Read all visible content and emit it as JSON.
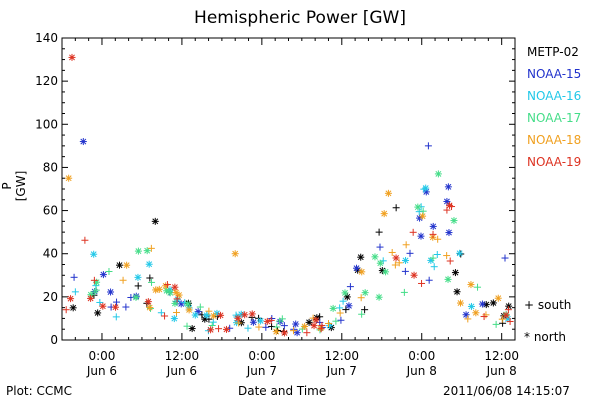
{
  "chart_data": {
    "type": "scatter",
    "title": "Hemispheric Power [GW]",
    "ylabel": "P [GW]",
    "xlabel": "Date and Time",
    "ylim": [
      0,
      140
    ],
    "yticks": [
      0,
      20,
      40,
      60,
      80,
      100,
      120,
      140
    ],
    "xlim_hours": [
      -6,
      62
    ],
    "xticks": [
      {
        "hour": 0,
        "time": "0:00",
        "date": "Jun 6"
      },
      {
        "hour": 12,
        "time": "12:00",
        "date": "Jun 6"
      },
      {
        "hour": 24,
        "time": "0:00",
        "date": "Jun 7"
      },
      {
        "hour": 36,
        "time": "12:00",
        "date": "Jun 7"
      },
      {
        "hour": 48,
        "time": "0:00",
        "date": "Jun 8"
      },
      {
        "hour": 60,
        "time": "12:00",
        "date": "Jun 8"
      }
    ],
    "marker_key": {
      "south": "+ south",
      "north": "* north"
    },
    "series": [
      {
        "name": "METP-02",
        "color": "#000000"
      },
      {
        "name": "NOAA-15",
        "color": "#2233cc"
      },
      {
        "name": "NOAA-16",
        "color": "#22c8e8"
      },
      {
        "name": "NOAA-17",
        "color": "#44dd88"
      },
      {
        "name": "NOAA-18",
        "color": "#f0a020"
      },
      {
        "name": "NOAA-19",
        "color": "#dd3322"
      }
    ],
    "grid": false,
    "legend_position": "right"
  },
  "footer": {
    "plot_credit": "Plot: CCMC",
    "timestamp": "2011/06/08 14:15:07"
  }
}
